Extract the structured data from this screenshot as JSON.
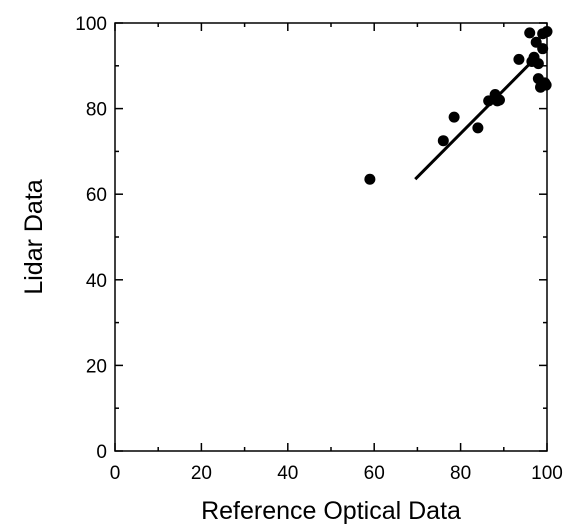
{
  "chart_data": {
    "type": "scatter",
    "xlabel": "Reference Optical Data",
    "ylabel": "Lidar Data",
    "xlim": [
      0,
      100
    ],
    "ylim": [
      0,
      100
    ],
    "xticks": [
      "0",
      "20",
      "40",
      "60",
      "80",
      "100"
    ],
    "yticks": [
      "0",
      "20",
      "40",
      "60",
      "80",
      "100"
    ],
    "grid": false,
    "points": [
      {
        "x": 59.0,
        "y": 63.5
      },
      {
        "x": 76.0,
        "y": 72.5
      },
      {
        "x": 78.5,
        "y": 78.0
      },
      {
        "x": 84.0,
        "y": 75.5
      },
      {
        "x": 86.5,
        "y": 81.8
      },
      {
        "x": 88.0,
        "y": 83.3
      },
      {
        "x": 88.5,
        "y": 81.8
      },
      {
        "x": 89.0,
        "y": 82.0
      },
      {
        "x": 93.5,
        "y": 91.5
      },
      {
        "x": 96.0,
        "y": 97.7
      },
      {
        "x": 96.5,
        "y": 91.0
      },
      {
        "x": 97.0,
        "y": 92.0
      },
      {
        "x": 97.5,
        "y": 95.5
      },
      {
        "x": 98.0,
        "y": 90.5
      },
      {
        "x": 98.0,
        "y": 87.0
      },
      {
        "x": 98.5,
        "y": 85.0
      },
      {
        "x": 99.0,
        "y": 97.5
      },
      {
        "x": 99.0,
        "y": 94.0
      },
      {
        "x": 99.5,
        "y": 86.0
      },
      {
        "x": 99.8,
        "y": 85.5
      },
      {
        "x": 100.0,
        "y": 98.0
      }
    ],
    "fit_line": {
      "x": [
        69.5,
        98.0
      ],
      "y": [
        63.5,
        92.5
      ]
    }
  }
}
